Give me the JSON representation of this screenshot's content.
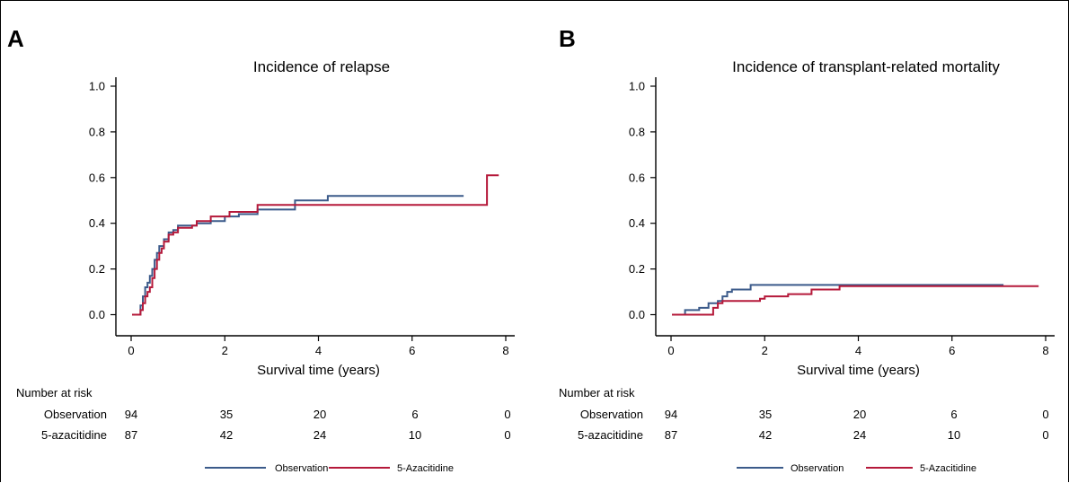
{
  "figure": {
    "series_labels": [
      "Observation",
      "5-Azacitidine"
    ],
    "risk_title": "Number at risk",
    "risk_rows": [
      {
        "label": "Observation",
        "values": [
          "94",
          "35",
          "20",
          "6",
          "0"
        ]
      },
      {
        "label": "5-azacitidine",
        "values": [
          "87",
          "42",
          "24",
          "10",
          "0"
        ]
      }
    ]
  },
  "chart_data": [
    {
      "type": "line",
      "step": true,
      "panel_label": "A",
      "title": "Incidence of relapse",
      "xlabel": "Survival time (years)",
      "ylabel": "",
      "xlim": [
        0,
        8
      ],
      "ylim": [
        0,
        1
      ],
      "xticks": [
        "0",
        "2",
        "4",
        "6",
        "8"
      ],
      "yticks": [
        "0.0",
        "0.2",
        "0.4",
        "0.6",
        "0.8",
        "1.0"
      ],
      "grid": false,
      "legend": "bottom-center",
      "series": [
        {
          "name": "Observation",
          "color": "#3b5a8a",
          "points": [
            [
              0.02,
              0
            ],
            [
              0.18,
              0
            ],
            [
              0.2,
              0.04
            ],
            [
              0.25,
              0.08
            ],
            [
              0.3,
              0.12
            ],
            [
              0.35,
              0.14
            ],
            [
              0.4,
              0.17
            ],
            [
              0.45,
              0.2
            ],
            [
              0.5,
              0.24
            ],
            [
              0.55,
              0.27
            ],
            [
              0.6,
              0.3
            ],
            [
              0.7,
              0.33
            ],
            [
              0.8,
              0.36
            ],
            [
              0.9,
              0.37
            ],
            [
              1.0,
              0.39
            ],
            [
              1.3,
              0.39
            ],
            [
              1.4,
              0.4
            ],
            [
              1.7,
              0.41
            ],
            [
              2.0,
              0.43
            ],
            [
              2.3,
              0.44
            ],
            [
              2.7,
              0.46
            ],
            [
              3.5,
              0.5
            ],
            [
              4.2,
              0.52
            ],
            [
              7.1,
              0.52
            ]
          ]
        },
        {
          "name": "5-Azacitidine",
          "color": "#b5193a",
          "points": [
            [
              0.02,
              0
            ],
            [
              0.15,
              0
            ],
            [
              0.2,
              0.02
            ],
            [
              0.25,
              0.05
            ],
            [
              0.3,
              0.08
            ],
            [
              0.35,
              0.1
            ],
            [
              0.4,
              0.12
            ],
            [
              0.45,
              0.16
            ],
            [
              0.5,
              0.2
            ],
            [
              0.55,
              0.24
            ],
            [
              0.6,
              0.27
            ],
            [
              0.65,
              0.29
            ],
            [
              0.7,
              0.32
            ],
            [
              0.8,
              0.35
            ],
            [
              0.9,
              0.36
            ],
            [
              1.0,
              0.38
            ],
            [
              1.3,
              0.39
            ],
            [
              1.4,
              0.41
            ],
            [
              1.7,
              0.43
            ],
            [
              2.1,
              0.45
            ],
            [
              2.7,
              0.48
            ],
            [
              3.2,
              0.48
            ],
            [
              3.5,
              0.48
            ],
            [
              7.6,
              0.48
            ],
            [
              7.6,
              0.61
            ],
            [
              7.85,
              0.61
            ]
          ]
        }
      ]
    },
    {
      "type": "line",
      "step": true,
      "panel_label": "B",
      "title": "Incidence of transplant-related mortality",
      "xlabel": "Survival time (years)",
      "ylabel": "",
      "xlim": [
        0,
        8
      ],
      "ylim": [
        0,
        1
      ],
      "xticks": [
        "0",
        "2",
        "4",
        "6",
        "8"
      ],
      "yticks": [
        "0.0",
        "0.2",
        "0.4",
        "0.6",
        "0.8",
        "1.0"
      ],
      "grid": false,
      "legend": "bottom-center",
      "series": [
        {
          "name": "Observation",
          "color": "#3b5a8a",
          "points": [
            [
              0.02,
              0
            ],
            [
              0.25,
              0
            ],
            [
              0.3,
              0.02
            ],
            [
              0.6,
              0.03
            ],
            [
              0.8,
              0.05
            ],
            [
              1.0,
              0.06
            ],
            [
              1.1,
              0.08
            ],
            [
              1.2,
              0.1
            ],
            [
              1.3,
              0.11
            ],
            [
              1.7,
              0.13
            ],
            [
              7.1,
              0.13
            ]
          ]
        },
        {
          "name": "5-Azacitidine",
          "color": "#b5193a",
          "points": [
            [
              0.02,
              0
            ],
            [
              0.85,
              0
            ],
            [
              0.9,
              0.03
            ],
            [
              1.0,
              0.05
            ],
            [
              1.1,
              0.06
            ],
            [
              1.9,
              0.07
            ],
            [
              2.0,
              0.08
            ],
            [
              2.5,
              0.09
            ],
            [
              3.0,
              0.11
            ],
            [
              3.6,
              0.125
            ],
            [
              7.85,
              0.125
            ]
          ]
        }
      ]
    }
  ]
}
